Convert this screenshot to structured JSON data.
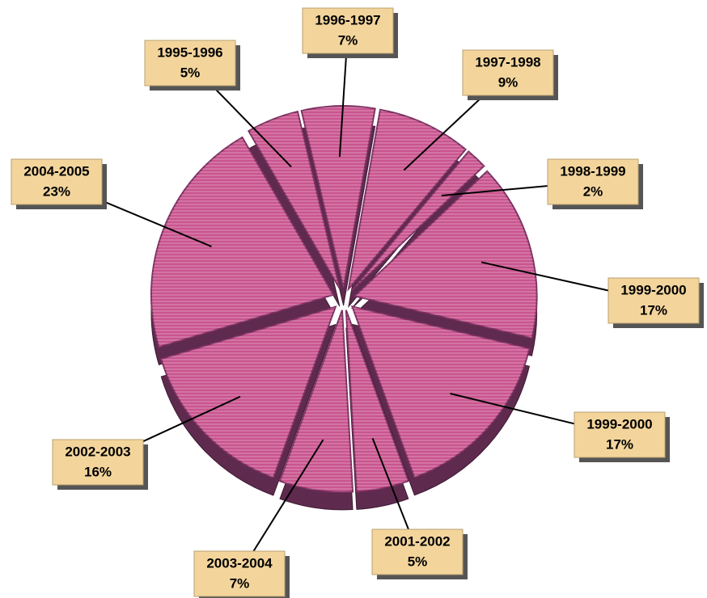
{
  "chart_data": {
    "type": "pie",
    "categories": [
      "1995-1996",
      "1996-1997",
      "1997-1998",
      "1998-1999",
      "1999-2000",
      "1999-2000",
      "2001-2002",
      "2003-2004",
      "2002-2003",
      "2004-2005"
    ],
    "values": [
      5,
      7,
      9,
      2,
      17,
      17,
      5,
      7,
      16,
      23
    ],
    "value_labels": [
      "5%",
      "7%",
      "9%",
      "2%",
      "17%",
      "17%",
      "5%",
      "7%",
      "16%",
      "23%"
    ],
    "color": "#c9558f"
  }
}
